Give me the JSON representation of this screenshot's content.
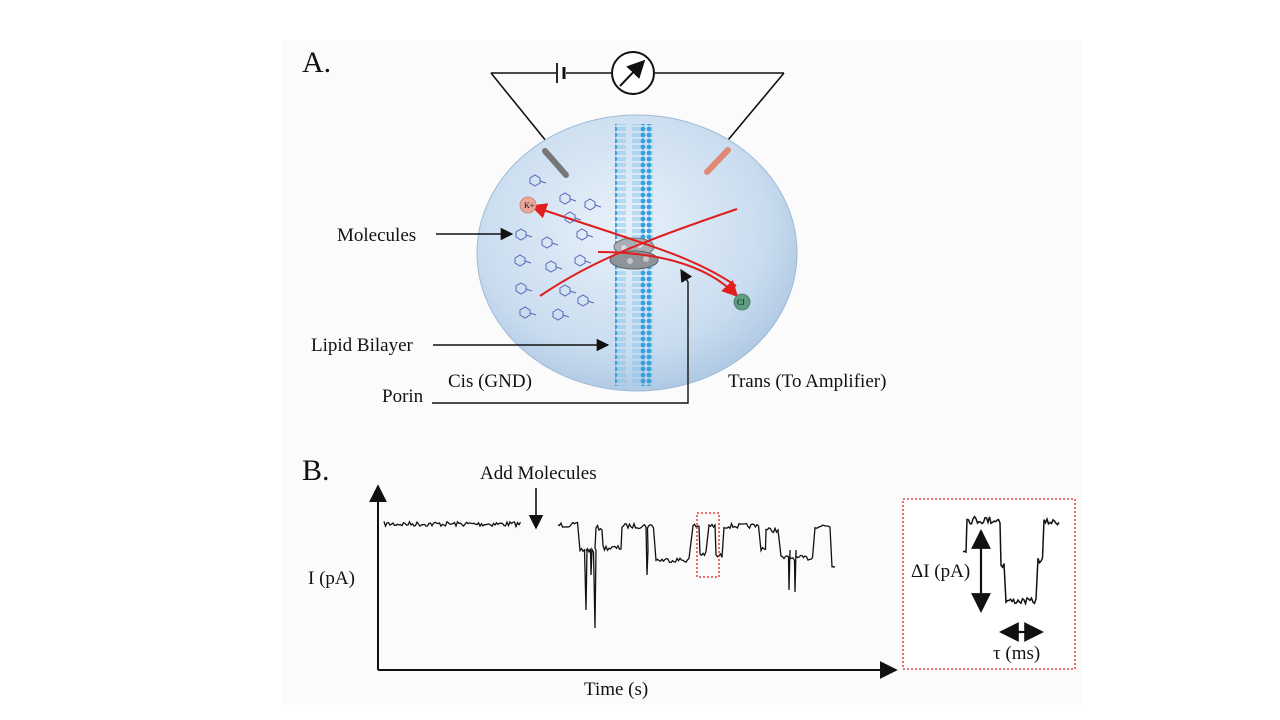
{
  "panel_a": {
    "letter": "A.",
    "labels": {
      "molecules": "Molecules",
      "lipid_bilayer": "Lipid Bilayer",
      "porin": "Porin",
      "cis": "Cis (GND)",
      "trans": "Trans (To Amplifier)",
      "k_ion": "K+",
      "cl_ion": "Cl"
    },
    "colors": {
      "chamber": "#c9dcef",
      "membrane": "#4aa8e0",
      "ion_flow_arrows": "#e01e1e",
      "k_ion": "#e8a79a",
      "cl_ion": "#5f9c80",
      "cis_electrode": "#777777",
      "trans_electrode": "#e08a76"
    }
  },
  "panel_b": {
    "letter": "B.",
    "add_molecules_label": "Add Molecules",
    "ylabel": "I (pA)",
    "xlabel": "Time (s)",
    "inset": {
      "delta_label": "ΔI (pA)",
      "tau_label": "τ (ms)"
    },
    "colors": {
      "trace": "#111111",
      "highlight_box": "#e02020"
    }
  }
}
